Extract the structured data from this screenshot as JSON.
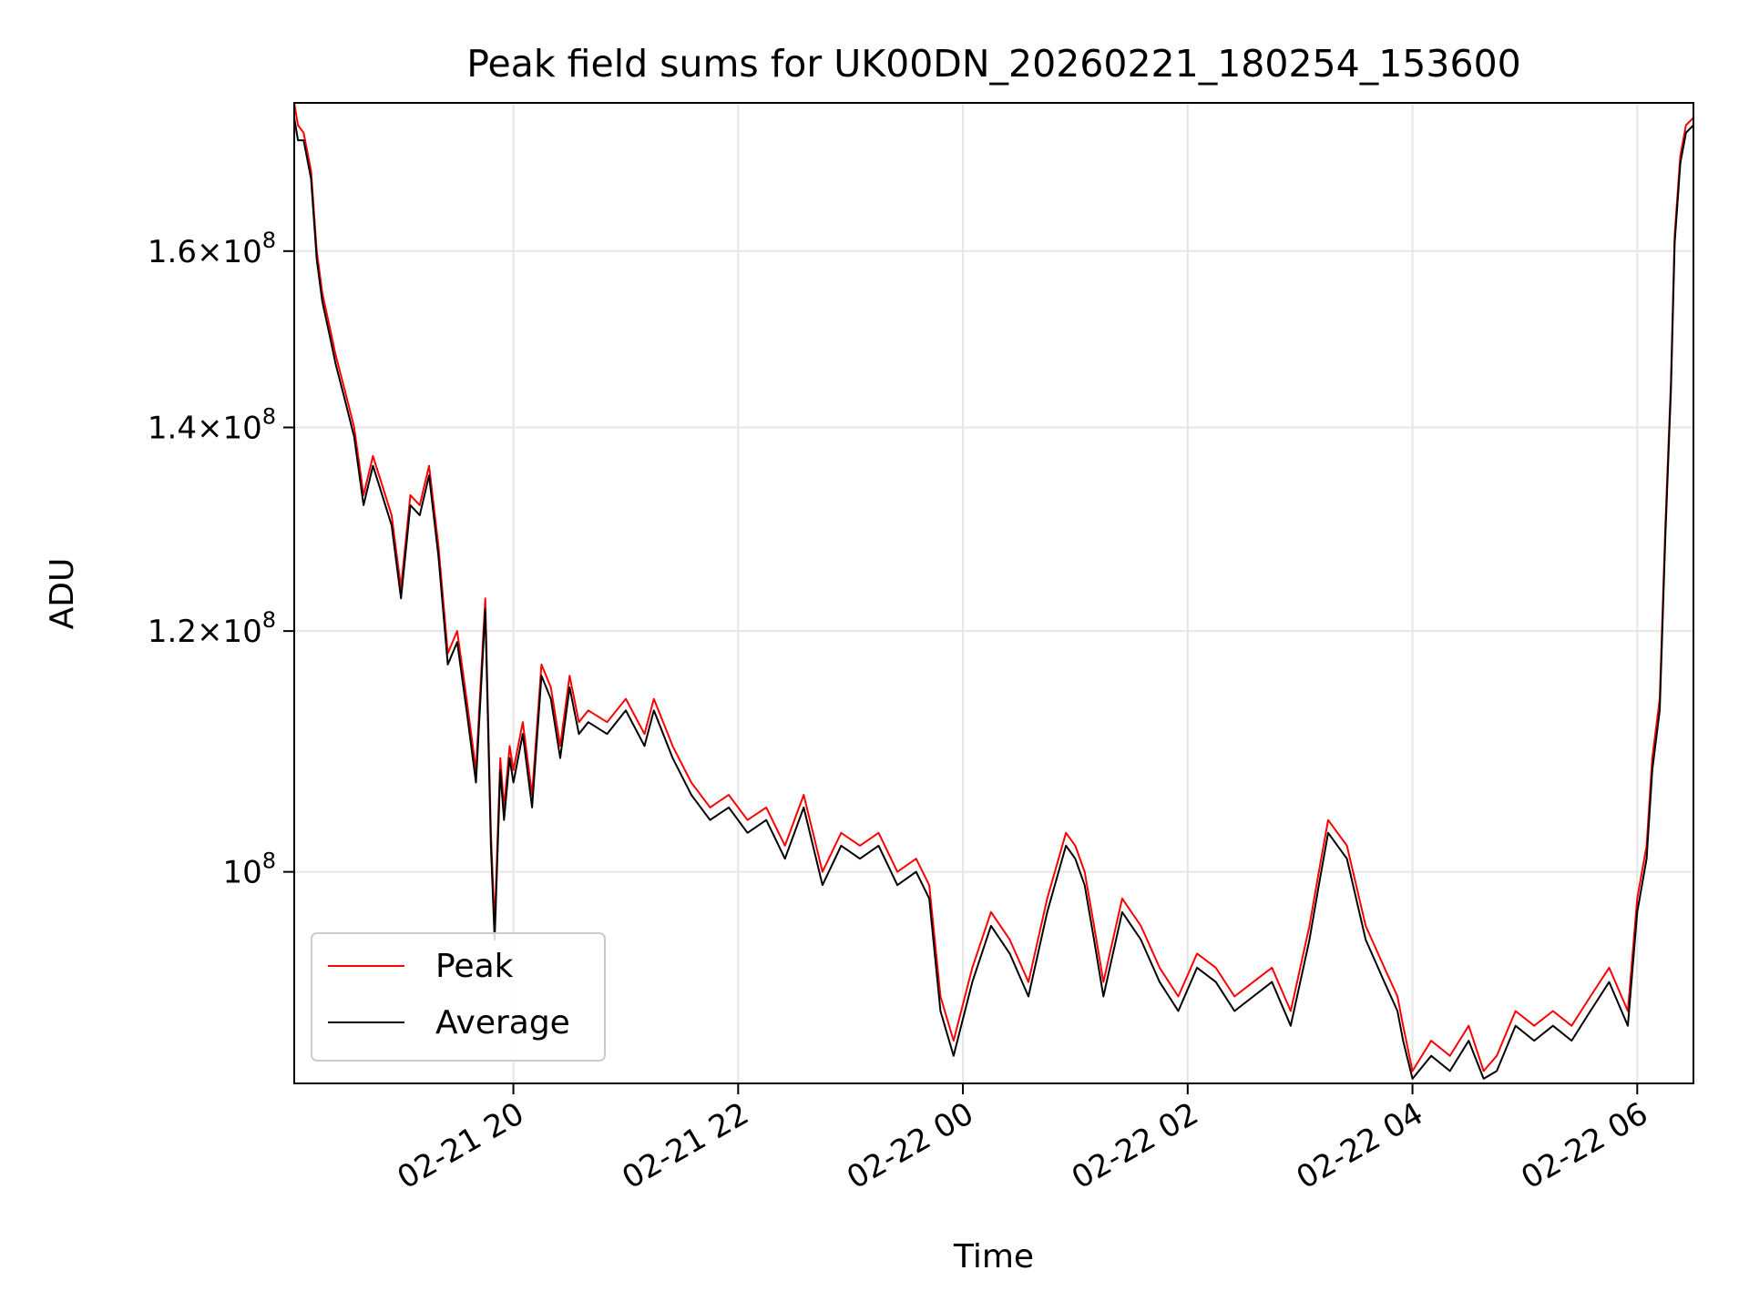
{
  "chart_data": {
    "type": "line",
    "title": "Peak field sums for UK00DN_20260221_180254_153600",
    "xlabel": "Time",
    "ylabel": "ADU",
    "yscale": "log",
    "xlim": [
      "2026-02-21 18:03",
      "2026-02-22 06:30"
    ],
    "ylim": [
      85200000.0,
      179000000.0
    ],
    "grid": true,
    "legend_position": "lower-left",
    "x_ticks": [
      {
        "label": "02-21 20",
        "value": "2026-02-21 20:00"
      },
      {
        "label": "02-21 22",
        "value": "2026-02-21 22:00"
      },
      {
        "label": "02-22 00",
        "value": "2026-02-22 00:00"
      },
      {
        "label": "02-22 02",
        "value": "2026-02-22 02:00"
      },
      {
        "label": "02-22 04",
        "value": "2026-02-22 04:00"
      },
      {
        "label": "02-22 06",
        "value": "2026-02-22 06:00"
      }
    ],
    "y_ticks": [
      {
        "mantissa": "1.6",
        "exp": "8",
        "value": 160000000.0
      },
      {
        "mantissa": "1.4",
        "exp": "8",
        "value": 140000000.0
      },
      {
        "mantissa": "1.2",
        "exp": "8",
        "value": 120000000.0
      },
      {
        "mantissa": "",
        "exp": "8",
        "value": 100000000.0
      }
    ],
    "x": [
      "2026-02-21 18:03",
      "2026-02-21 18:05",
      "2026-02-21 18:08",
      "2026-02-21 18:12",
      "2026-02-21 18:15",
      "2026-02-21 18:18",
      "2026-02-21 18:22",
      "2026-02-21 18:25",
      "2026-02-21 18:30",
      "2026-02-21 18:35",
      "2026-02-21 18:40",
      "2026-02-21 18:45",
      "2026-02-21 18:50",
      "2026-02-21 18:55",
      "2026-02-21 19:00",
      "2026-02-21 19:05",
      "2026-02-21 19:10",
      "2026-02-21 19:15",
      "2026-02-21 19:20",
      "2026-02-21 19:25",
      "2026-02-21 19:30",
      "2026-02-21 19:35",
      "2026-02-21 19:40",
      "2026-02-21 19:45",
      "2026-02-21 19:48",
      "2026-02-21 19:50",
      "2026-02-21 19:53",
      "2026-02-21 19:55",
      "2026-02-21 19:58",
      "2026-02-21 20:00",
      "2026-02-21 20:05",
      "2026-02-21 20:10",
      "2026-02-21 20:15",
      "2026-02-21 20:20",
      "2026-02-21 20:25",
      "2026-02-21 20:30",
      "2026-02-21 20:35",
      "2026-02-21 20:40",
      "2026-02-21 20:50",
      "2026-02-21 21:00",
      "2026-02-21 21:10",
      "2026-02-21 21:15",
      "2026-02-21 21:25",
      "2026-02-21 21:35",
      "2026-02-21 21:45",
      "2026-02-21 21:55",
      "2026-02-21 22:05",
      "2026-02-21 22:15",
      "2026-02-21 22:25",
      "2026-02-21 22:35",
      "2026-02-21 22:45",
      "2026-02-21 22:55",
      "2026-02-21 23:05",
      "2026-02-21 23:15",
      "2026-02-21 23:25",
      "2026-02-21 23:35",
      "2026-02-21 23:42",
      "2026-02-21 23:48",
      "2026-02-21 23:55",
      "2026-02-22 00:05",
      "2026-02-22 00:15",
      "2026-02-22 00:25",
      "2026-02-22 00:35",
      "2026-02-22 00:45",
      "2026-02-22 00:55",
      "2026-02-22 01:00",
      "2026-02-22 01:05",
      "2026-02-22 01:10",
      "2026-02-22 01:15",
      "2026-02-22 01:25",
      "2026-02-22 01:35",
      "2026-02-22 01:45",
      "2026-02-22 01:55",
      "2026-02-22 02:05",
      "2026-02-22 02:15",
      "2026-02-22 02:25",
      "2026-02-22 02:35",
      "2026-02-22 02:45",
      "2026-02-22 02:55",
      "2026-02-22 03:05",
      "2026-02-22 03:10",
      "2026-02-22 03:15",
      "2026-02-22 03:25",
      "2026-02-22 03:35",
      "2026-02-22 03:45",
      "2026-02-22 03:52",
      "2026-02-22 03:55",
      "2026-02-22 04:00",
      "2026-02-22 04:10",
      "2026-02-22 04:20",
      "2026-02-22 04:30",
      "2026-02-22 04:38",
      "2026-02-22 04:45",
      "2026-02-22 04:55",
      "2026-02-22 05:05",
      "2026-02-22 05:15",
      "2026-02-22 05:25",
      "2026-02-22 05:35",
      "2026-02-22 05:45",
      "2026-02-22 05:55",
      "2026-02-22 06:00",
      "2026-02-22 06:05",
      "2026-02-22 06:08",
      "2026-02-22 06:12",
      "2026-02-22 06:15",
      "2026-02-22 06:18",
      "2026-02-22 06:20",
      "2026-02-22 06:23",
      "2026-02-22 06:26",
      "2026-02-22 06:30"
    ],
    "series": [
      {
        "name": "Peak",
        "color": "#ff0000",
        "values": [
          179000000.0,
          176000000.0,
          175000000.0,
          170000000.0,
          160000000.0,
          155000000.0,
          151000000.0,
          148000000.0,
          144000000.0,
          140000000.0,
          133000000.0,
          137000000.0,
          134000000.0,
          131000000.0,
          124000000.0,
          133000000.0,
          132000000.0,
          136000000.0,
          128000000.0,
          118000000.0,
          120000000.0,
          114000000.0,
          108000000.0,
          123000000.0,
          103000000.0,
          96000000.0,
          109000000.0,
          105000000.0,
          110000000.0,
          108000000.0,
          112000000.0,
          106000000.0,
          117000000.0,
          115000000.0,
          110000000.0,
          116000000.0,
          112000000.0,
          113000000.0,
          112000000.0,
          114000000.0,
          111000000.0,
          114000000.0,
          110000000.0,
          107000000.0,
          105000000.0,
          106000000.0,
          104000000.0,
          105000000.0,
          102000000.0,
          106000000.0,
          100000000.0,
          103000000.0,
          102000000.0,
          103000000.0,
          100000000.0,
          101000000.0,
          99000000.0,
          91000000.0,
          88000000.0,
          93000000.0,
          97000000.0,
          95000000.0,
          92000000.0,
          98000000.0,
          103000000.0,
          102000000.0,
          100000000.0,
          96000000.0,
          92000000.0,
          98000000.0,
          96000000.0,
          93000000.0,
          91000000.0,
          94000000.0,
          93000000.0,
          91000000.0,
          92000000.0,
          93000000.0,
          90000000.0,
          96000000.0,
          100000000.0,
          104000000.0,
          102000000.0,
          96000000.0,
          93000000.0,
          91000000.0,
          89000000.0,
          86000000.0,
          88000000.0,
          87000000.0,
          89000000.0,
          86000000.0,
          87000000.0,
          90000000.0,
          89000000.0,
          90000000.0,
          89000000.0,
          91000000.0,
          93000000.0,
          90000000.0,
          98000000.0,
          102000000.0,
          109000000.0,
          114000000.0,
          130000000.0,
          145000000.0,
          162000000.0,
          172000000.0,
          176000000.0,
          177000000.0
        ]
      },
      {
        "name": "Average",
        "color": "#000000",
        "values": [
          177000000.0,
          174000000.0,
          174000000.0,
          169000000.0,
          159000000.0,
          154000000.0,
          150000000.0,
          147000000.0,
          143000000.0,
          139000000.0,
          132000000.0,
          136000000.0,
          133000000.0,
          130000000.0,
          123000000.0,
          132000000.0,
          131000000.0,
          135000000.0,
          127000000.0,
          117000000.0,
          119000000.0,
          113000000.0,
          107000000.0,
          122000000.0,
          102000000.0,
          95000000.0,
          108000000.0,
          104000000.0,
          109000000.0,
          107000000.0,
          111000000.0,
          105000000.0,
          116000000.0,
          114000000.0,
          109000000.0,
          115000000.0,
          111000000.0,
          112000000.0,
          111000000.0,
          113000000.0,
          110000000.0,
          113000000.0,
          109000000.0,
          106000000.0,
          104000000.0,
          105000000.0,
          103000000.0,
          104000000.0,
          101000000.0,
          105000000.0,
          99000000.0,
          102000000.0,
          101000000.0,
          102000000.0,
          99000000.0,
          100000000.0,
          98000000.0,
          90000000.0,
          87000000.0,
          92000000.0,
          96000000.0,
          94000000.0,
          91000000.0,
          97000000.0,
          102000000.0,
          101000000.0,
          99000000.0,
          95000000.0,
          91000000.0,
          97000000.0,
          95000000.0,
          92000000.0,
          90000000.0,
          93000000.0,
          92000000.0,
          90000000.0,
          91000000.0,
          92000000.0,
          89000000.0,
          95000000.0,
          99000000.0,
          103000000.0,
          101000000.0,
          95000000.0,
          92000000.0,
          90000000.0,
          88000000.0,
          85500000.0,
          87000000.0,
          86000000.0,
          88000000.0,
          85500000.0,
          86000000.0,
          89000000.0,
          88000000.0,
          89000000.0,
          88000000.0,
          90000000.0,
          92000000.0,
          89000000.0,
          97000000.0,
          101000000.0,
          108000000.0,
          113000000.0,
          129000000.0,
          144000000.0,
          161000000.0,
          171000000.0,
          175000000.0,
          176000000.0
        ]
      }
    ]
  }
}
